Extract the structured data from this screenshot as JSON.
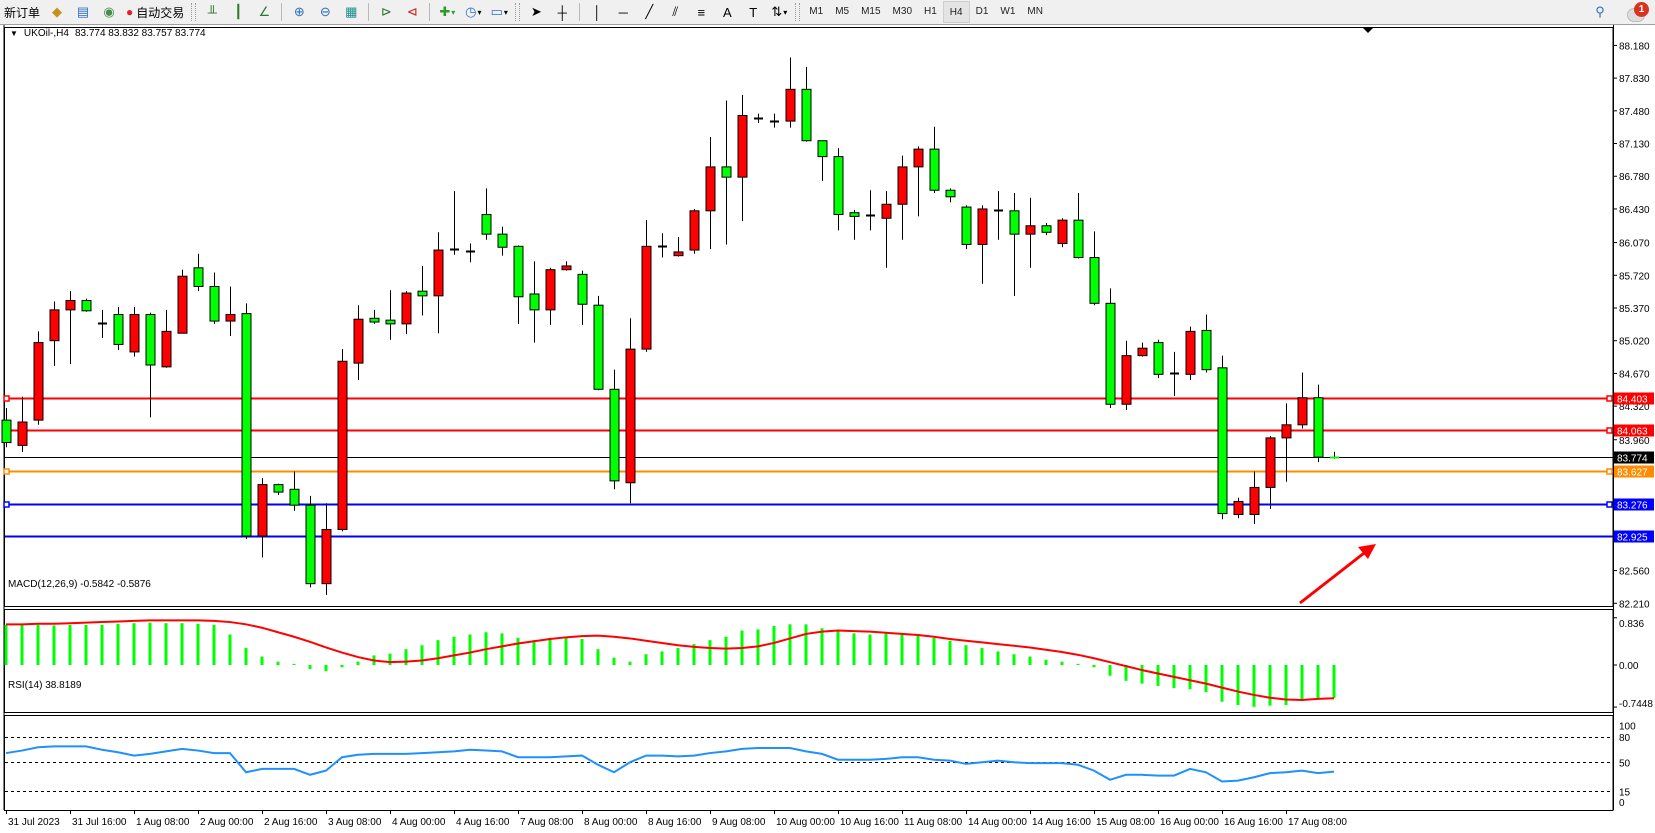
{
  "toolbar": {
    "new_order": "新订单",
    "auto_trading": "自动交易",
    "timeframes": [
      "M1",
      "M5",
      "M15",
      "M30",
      "H1",
      "H4",
      "D1",
      "W1",
      "MN"
    ],
    "active_timeframe": "H4",
    "notification_count": "1"
  },
  "chart": {
    "symbol": "UKOil-,H4",
    "ohlc_readout": "83.774 83.832 83.757 83.774",
    "colors": {
      "bull": "#ff0000",
      "bear": "#00ff00",
      "outline": "#000000"
    },
    "price_ticks": [
      "88.180",
      "87.830",
      "87.480",
      "87.130",
      "86.780",
      "86.430",
      "86.070",
      "85.720",
      "85.370",
      "85.020",
      "84.670",
      "84.320",
      "83.960",
      "82.560",
      "82.210"
    ],
    "hlines": [
      {
        "price": 84.403,
        "label": "84.403",
        "color": "#ff0000",
        "marker": true
      },
      {
        "price": 84.063,
        "label": "84.063",
        "color": "#ff0000",
        "marker": true
      },
      {
        "price": 83.774,
        "label": "83.774",
        "color": "#000000",
        "marker": false
      },
      {
        "price": 83.627,
        "label": "83.627",
        "color": "#ff8c00",
        "marker": true
      },
      {
        "price": 83.276,
        "label": "83.276",
        "color": "#0000ff",
        "marker": true
      },
      {
        "price": 82.925,
        "label": "82.925",
        "color": "#0000ff",
        "marker": false
      }
    ],
    "arrow": {
      "color": "#ff0000",
      "direction": "up-right"
    },
    "date_labels": [
      "31 Jul 2023",
      "31 Jul 16:00",
      "1 Aug 08:00",
      "2 Aug 00:00",
      "2 Aug 16:00",
      "3 Aug 08:00",
      "4 Aug 00:00",
      "4 Aug 16:00",
      "7 Aug 08:00",
      "8 Aug 00:00",
      "8 Aug 16:00",
      "9 Aug 08:00",
      "10 Aug 00:00",
      "10 Aug 16:00",
      "11 Aug 08:00",
      "14 Aug 00:00",
      "14 Aug 16:00",
      "15 Aug 08:00",
      "16 Aug 00:00",
      "16 Aug 16:00",
      "17 Aug 08:00"
    ]
  },
  "macd": {
    "label": "MACD(12,26,9) -0.5842 -0.5876",
    "ticks": [
      "0.836",
      "0.00",
      "-0.7448"
    ],
    "hist_color": "#00ff00",
    "signal_color": "#ff0000"
  },
  "rsi": {
    "label": "RSI(14) 38.8189",
    "ticks": [
      "100",
      "80",
      "50",
      "15",
      "0"
    ],
    "levels": [
      80,
      50,
      15
    ],
    "color": "#1e90ff"
  },
  "chart_data": {
    "type": "candlestick",
    "symbol": "UKOil-",
    "timeframe": "H4",
    "ylim": [
      82.18,
      88.38
    ],
    "candles_ohlc": [
      [
        84.17,
        84.3,
        83.88,
        83.93
      ],
      [
        83.9,
        84.42,
        83.83,
        84.15
      ],
      [
        84.17,
        85.12,
        84.12,
        85.0
      ],
      [
        85.02,
        85.44,
        84.75,
        85.35
      ],
      [
        85.35,
        85.55,
        84.77,
        85.45
      ],
      [
        85.45,
        85.47,
        85.33,
        85.34
      ],
      [
        85.2,
        85.35,
        85.05,
        85.21
      ],
      [
        85.3,
        85.38,
        84.92,
        84.98
      ],
      [
        84.9,
        85.38,
        84.85,
        85.3
      ],
      [
        85.3,
        85.32,
        84.2,
        84.76
      ],
      [
        84.74,
        85.35,
        84.73,
        85.12
      ],
      [
        85.1,
        85.78,
        85.1,
        85.71
      ],
      [
        85.8,
        85.95,
        85.55,
        85.6
      ],
      [
        85.6,
        85.75,
        85.2,
        85.23
      ],
      [
        85.23,
        85.6,
        85.07,
        85.3
      ],
      [
        85.31,
        85.42,
        82.9,
        82.93
      ],
      [
        82.93,
        83.55,
        82.7,
        83.48
      ],
      [
        83.48,
        83.49,
        83.37,
        83.4
      ],
      [
        83.43,
        83.62,
        83.2,
        83.26
      ],
      [
        83.26,
        83.36,
        82.38,
        82.42
      ],
      [
        82.42,
        83.28,
        82.3,
        83.0
      ],
      [
        83.0,
        84.93,
        82.98,
        84.8
      ],
      [
        84.78,
        85.4,
        84.6,
        85.25
      ],
      [
        85.26,
        85.35,
        85.2,
        85.22
      ],
      [
        85.24,
        85.56,
        85.03,
        85.2
      ],
      [
        85.2,
        85.55,
        85.09,
        85.53
      ],
      [
        85.55,
        85.82,
        85.29,
        85.5
      ],
      [
        85.5,
        86.18,
        85.1,
        85.99
      ],
      [
        85.99,
        86.62,
        85.94,
        86.0
      ],
      [
        85.98,
        86.06,
        85.86,
        85.98
      ],
      [
        86.37,
        86.65,
        86.1,
        86.16
      ],
      [
        86.16,
        86.24,
        85.93,
        86.02
      ],
      [
        86.03,
        86.04,
        85.2,
        85.49
      ],
      [
        85.52,
        85.87,
        85.0,
        85.35
      ],
      [
        85.35,
        85.8,
        85.19,
        85.78
      ],
      [
        85.78,
        85.87,
        85.77,
        85.82
      ],
      [
        85.73,
        85.77,
        85.19,
        85.41
      ],
      [
        85.4,
        85.5,
        84.49,
        84.5
      ],
      [
        84.5,
        84.71,
        83.43,
        83.52
      ],
      [
        83.5,
        85.26,
        83.28,
        84.93
      ],
      [
        84.93,
        86.31,
        84.9,
        86.03
      ],
      [
        86.03,
        86.17,
        85.91,
        86.03
      ],
      [
        85.93,
        86.13,
        85.92,
        85.97
      ],
      [
        85.99,
        86.43,
        85.95,
        86.41
      ],
      [
        86.41,
        87.2,
        86.0,
        86.88
      ],
      [
        86.88,
        87.59,
        86.05,
        86.77
      ],
      [
        86.77,
        87.65,
        86.3,
        87.43
      ],
      [
        87.4,
        87.45,
        87.35,
        87.38
      ],
      [
        87.36,
        87.45,
        87.3,
        87.37
      ],
      [
        87.37,
        88.05,
        87.3,
        87.71
      ],
      [
        87.71,
        87.95,
        87.15,
        87.16
      ],
      [
        87.16,
        87.16,
        86.73,
        86.99
      ],
      [
        86.99,
        87.08,
        86.2,
        86.37
      ],
      [
        86.39,
        86.42,
        86.1,
        86.35
      ],
      [
        86.36,
        86.63,
        86.2,
        86.37
      ],
      [
        86.33,
        86.62,
        85.8,
        86.48
      ],
      [
        86.48,
        87.0,
        86.1,
        86.88
      ],
      [
        86.88,
        87.1,
        86.35,
        87.07
      ],
      [
        87.07,
        87.31,
        86.6,
        86.63
      ],
      [
        86.63,
        86.65,
        86.5,
        86.56
      ],
      [
        86.45,
        86.47,
        86.0,
        86.05
      ],
      [
        86.05,
        86.47,
        85.63,
        86.43
      ],
      [
        86.41,
        86.62,
        86.1,
        86.42
      ],
      [
        86.41,
        86.6,
        85.5,
        86.16
      ],
      [
        86.16,
        86.55,
        85.8,
        86.25
      ],
      [
        86.25,
        86.28,
        86.15,
        86.18
      ],
      [
        86.06,
        86.33,
        86.02,
        86.31
      ],
      [
        86.31,
        86.6,
        85.9,
        85.91
      ],
      [
        85.91,
        86.19,
        85.4,
        85.42
      ],
      [
        85.42,
        85.58,
        84.3,
        84.34
      ],
      [
        84.34,
        85.02,
        84.28,
        84.86
      ],
      [
        84.86,
        85.0,
        84.85,
        84.94
      ],
      [
        85.0,
        85.03,
        84.62,
        84.66
      ],
      [
        84.66,
        84.9,
        84.43,
        84.67
      ],
      [
        84.66,
        85.17,
        84.6,
        85.12
      ],
      [
        85.13,
        85.3,
        84.68,
        84.71
      ],
      [
        84.73,
        84.86,
        83.11,
        83.17
      ],
      [
        83.16,
        83.34,
        83.12,
        83.3
      ],
      [
        83.16,
        83.62,
        83.06,
        83.45
      ],
      [
        83.45,
        84.0,
        83.22,
        83.98
      ],
      [
        83.98,
        84.35,
        83.51,
        84.12
      ],
      [
        84.12,
        84.68,
        84.08,
        84.41
      ],
      [
        84.41,
        84.55,
        83.72,
        83.774
      ],
      [
        83.774,
        83.832,
        83.757,
        83.774
      ]
    ],
    "macd_main": [
      0.71,
      0.71,
      0.71,
      0.7,
      0.71,
      0.71,
      0.71,
      0.73,
      0.74,
      0.75,
      0.74,
      0.74,
      0.73,
      0.71,
      0.54,
      0.3,
      0.15,
      0.06,
      0.02,
      -0.07,
      -0.11,
      -0.04,
      0.06,
      0.17,
      0.2,
      0.28,
      0.35,
      0.44,
      0.5,
      0.54,
      0.58,
      0.56,
      0.48,
      0.44,
      0.48,
      0.5,
      0.46,
      0.28,
      0.13,
      0.06,
      0.19,
      0.24,
      0.3,
      0.37,
      0.44,
      0.5,
      0.61,
      0.63,
      0.69,
      0.72,
      0.72,
      0.65,
      0.6,
      0.56,
      0.54,
      0.56,
      0.56,
      0.54,
      0.48,
      0.43,
      0.35,
      0.3,
      0.24,
      0.19,
      0.15,
      0.09,
      0.06,
      0.02,
      -0.04,
      -0.19,
      -0.28,
      -0.33,
      -0.37,
      -0.41,
      -0.43,
      -0.48,
      -0.65,
      -0.71,
      -0.74,
      -0.72,
      -0.71,
      -0.63,
      -0.59,
      -0.5842
    ],
    "macd_signal": [
      0.72,
      0.72,
      0.73,
      0.73,
      0.74,
      0.75,
      0.76,
      0.77,
      0.78,
      0.79,
      0.79,
      0.79,
      0.79,
      0.78,
      0.76,
      0.72,
      0.66,
      0.58,
      0.5,
      0.41,
      0.31,
      0.22,
      0.14,
      0.08,
      0.05,
      0.06,
      0.08,
      0.12,
      0.17,
      0.22,
      0.28,
      0.33,
      0.38,
      0.42,
      0.46,
      0.49,
      0.51,
      0.52,
      0.5,
      0.47,
      0.43,
      0.39,
      0.35,
      0.32,
      0.3,
      0.29,
      0.3,
      0.33,
      0.39,
      0.47,
      0.55,
      0.59,
      0.61,
      0.6,
      0.59,
      0.57,
      0.55,
      0.53,
      0.5,
      0.46,
      0.43,
      0.4,
      0.37,
      0.34,
      0.31,
      0.27,
      0.23,
      0.18,
      0.12,
      0.05,
      -0.02,
      -0.09,
      -0.15,
      -0.21,
      -0.27,
      -0.33,
      -0.4,
      -0.47,
      -0.53,
      -0.58,
      -0.61,
      -0.62,
      -0.6,
      -0.5876
    ],
    "rsi": [
      61,
      64,
      68,
      69,
      69,
      69,
      65,
      62,
      58,
      60,
      63,
      66,
      64,
      61,
      61,
      38,
      42,
      42,
      42,
      35,
      40,
      56,
      59,
      60,
      60,
      60,
      61,
      62,
      63,
      65,
      64,
      63,
      56,
      56,
      56,
      57,
      58,
      47,
      38,
      50,
      58,
      58,
      57,
      58,
      61,
      63,
      66,
      67,
      67,
      67,
      63,
      60,
      53,
      53,
      53,
      54,
      56,
      56,
      53,
      52,
      48,
      50,
      52,
      50,
      49,
      49,
      49,
      47,
      40,
      29,
      35,
      35,
      34,
      34,
      42,
      38,
      27,
      28,
      32,
      37,
      38,
      40,
      37,
      38.8189
    ]
  }
}
